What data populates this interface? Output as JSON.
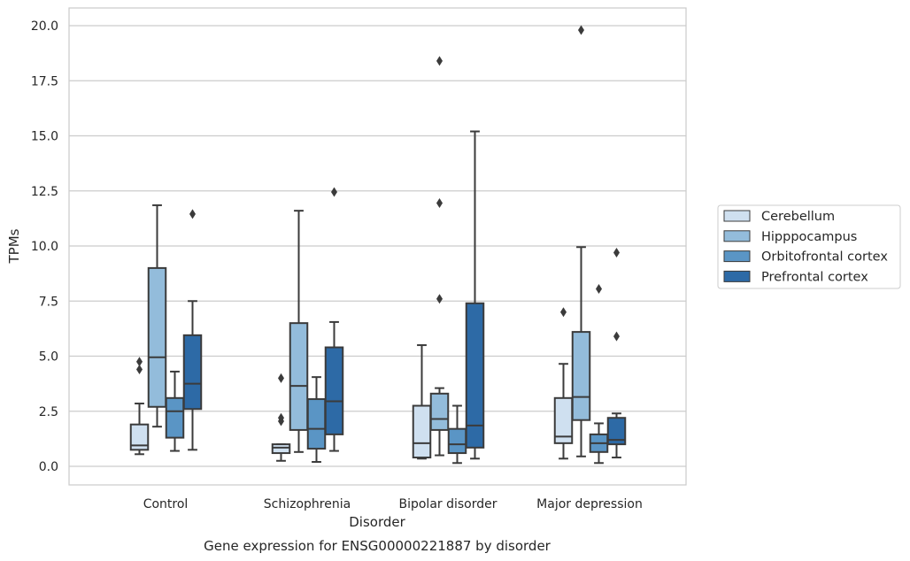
{
  "chart_data": {
    "type": "box",
    "title": "",
    "caption": "Gene expression for ENSG00000221887 by disorder",
    "xlabel": "Disorder",
    "ylabel": "TPMs",
    "ylim": [
      -0.8,
      20.8
    ],
    "yticks": [
      "0.0",
      "2.5",
      "5.0",
      "7.5",
      "10.0",
      "12.5",
      "15.0",
      "17.5",
      "20.0"
    ],
    "ytick_values": [
      0,
      2.5,
      5,
      7.5,
      10,
      12.5,
      15,
      17.5,
      20
    ],
    "categories": [
      "Control",
      "Schizophrenia",
      "Bipolar disorder",
      "Major depression"
    ],
    "grid": "horizontal",
    "legend_position": "right",
    "series": [
      {
        "name": "Cerebellum",
        "color": "#cfe0f0",
        "boxes": [
          {
            "whislo": 0.55,
            "q1": 0.75,
            "med": 0.95,
            "q3": 1.9,
            "whishi": 2.85,
            "fliers": [
              4.75,
              4.4
            ]
          },
          {
            "whislo": 0.25,
            "q1": 0.6,
            "med": 0.85,
            "q3": 1.0,
            "whishi": 1.0,
            "fliers": [
              4.0,
              2.2,
              2.05
            ]
          },
          {
            "whislo": 0.35,
            "q1": 0.4,
            "med": 1.05,
            "q3": 2.75,
            "whishi": 5.5,
            "fliers": []
          },
          {
            "whislo": 0.35,
            "q1": 1.05,
            "med": 1.35,
            "q3": 3.1,
            "whishi": 4.65,
            "fliers": [
              7.0
            ]
          }
        ]
      },
      {
        "name": "Hipppocampus",
        "color": "#93bcdb",
        "boxes": [
          {
            "whislo": 1.8,
            "q1": 2.7,
            "med": 4.95,
            "q3": 9.0,
            "whishi": 11.85,
            "fliers": []
          },
          {
            "whislo": 0.65,
            "q1": 1.65,
            "med": 3.65,
            "q3": 6.5,
            "whishi": 11.6,
            "fliers": []
          },
          {
            "whislo": 0.5,
            "q1": 1.65,
            "med": 2.15,
            "q3": 3.3,
            "whishi": 3.55,
            "fliers": [
              18.4,
              11.95,
              7.6
            ]
          },
          {
            "whislo": 0.45,
            "q1": 2.1,
            "med": 3.15,
            "q3": 6.1,
            "whishi": 9.95,
            "fliers": [
              19.8
            ]
          }
        ]
      },
      {
        "name": "Orbitofrontal cortex",
        "color": "#5a95c5",
        "boxes": [
          {
            "whislo": 0.7,
            "q1": 1.3,
            "med": 2.5,
            "q3": 3.1,
            "whishi": 4.3,
            "fliers": []
          },
          {
            "whislo": 0.2,
            "q1": 0.8,
            "med": 1.7,
            "q3": 3.05,
            "whishi": 4.05,
            "fliers": []
          },
          {
            "whislo": 0.15,
            "q1": 0.6,
            "med": 1.0,
            "q3": 1.7,
            "whishi": 2.75,
            "fliers": []
          },
          {
            "whislo": 0.15,
            "q1": 0.65,
            "med": 1.05,
            "q3": 1.45,
            "whishi": 1.95,
            "fliers": [
              8.05
            ]
          }
        ]
      },
      {
        "name": "Prefrontal cortex",
        "color": "#2d6aa6",
        "boxes": [
          {
            "whislo": 0.75,
            "q1": 2.6,
            "med": 3.75,
            "q3": 5.95,
            "whishi": 7.5,
            "fliers": [
              11.45
            ]
          },
          {
            "whislo": 0.7,
            "q1": 1.45,
            "med": 2.95,
            "q3": 5.4,
            "whishi": 6.55,
            "fliers": [
              12.45
            ]
          },
          {
            "whislo": 0.35,
            "q1": 0.85,
            "med": 1.85,
            "q3": 7.4,
            "whishi": 15.2,
            "fliers": []
          },
          {
            "whislo": 0.4,
            "q1": 1.0,
            "med": 1.2,
            "q3": 2.2,
            "whishi": 2.4,
            "fliers": [
              9.7,
              5.9
            ]
          }
        ]
      }
    ]
  }
}
